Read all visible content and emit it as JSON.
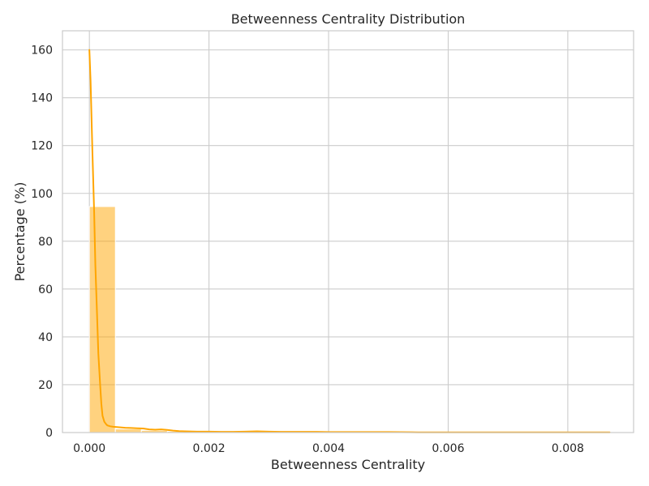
{
  "chart_data": {
    "type": "bar",
    "title": "Betweenness Centrality Distribution",
    "xlabel": "Betweenness Centrality",
    "ylabel": "Percentage (%)",
    "xlim": [
      -0.00045,
      0.0091
    ],
    "ylim": [
      0,
      168
    ],
    "xticks": [
      0.0,
      0.002,
      0.004,
      0.006,
      0.008
    ],
    "xtick_labels": [
      "0.000",
      "0.002",
      "0.004",
      "0.006",
      "0.008"
    ],
    "yticks": [
      0,
      20,
      40,
      60,
      80,
      100,
      120,
      140,
      160
    ],
    "ytick_labels": [
      "0",
      "20",
      "40",
      "60",
      "80",
      "100",
      "120",
      "140",
      "160"
    ],
    "grid": true,
    "bar_color": "#ffa500",
    "bar_alpha": 0.5,
    "kde_color": "#ffa500",
    "bins": [
      {
        "x0": 0.0,
        "x1": 0.000435,
        "value": 94.5
      },
      {
        "x0": 0.000435,
        "x1": 0.00087,
        "value": 1.5
      },
      {
        "x0": 0.00087,
        "x1": 0.001305,
        "value": 0.9
      },
      {
        "x0": 0.001305,
        "x1": 0.00174,
        "value": 0.5
      },
      {
        "x0": 0.00174,
        "x1": 0.002175,
        "value": 0.3
      },
      {
        "x0": 0.002175,
        "x1": 0.00261,
        "value": 0.3
      },
      {
        "x0": 0.00261,
        "x1": 0.003045,
        "value": 0.3
      },
      {
        "x0": 0.003045,
        "x1": 0.00348,
        "value": 0.2
      },
      {
        "x0": 0.00348,
        "x1": 0.003915,
        "value": 0.2
      },
      {
        "x0": 0.003915,
        "x1": 0.00435,
        "value": 0.2
      },
      {
        "x0": 0.00435,
        "x1": 0.004785,
        "value": 0.2
      },
      {
        "x0": 0.004785,
        "x1": 0.00522,
        "value": 0.1
      },
      {
        "x0": 0.00522,
        "x1": 0.005655,
        "value": 0.0
      },
      {
        "x0": 0.005655,
        "x1": 0.00609,
        "value": 0.1
      },
      {
        "x0": 0.00609,
        "x1": 0.006525,
        "value": 0.1
      },
      {
        "x0": 0.006525,
        "x1": 0.00696,
        "value": 0.0
      },
      {
        "x0": 0.00696,
        "x1": 0.007395,
        "value": 0.1
      },
      {
        "x0": 0.007395,
        "x1": 0.00783,
        "value": 0.0
      },
      {
        "x0": 0.00783,
        "x1": 0.008265,
        "value": 0.0
      },
      {
        "x0": 0.008265,
        "x1": 0.0087,
        "value": 0.1
      }
    ],
    "kde": {
      "x": [
        0.0,
        2e-05,
        5e-05,
        8e-05,
        0.0001,
        0.00013,
        0.00015,
        0.00018,
        0.0002,
        0.00022,
        0.00025,
        0.00028,
        0.0003,
        0.00035,
        0.0004,
        0.0005,
        0.0006,
        0.0007,
        0.0008,
        0.0009,
        0.001,
        0.0011,
        0.0012,
        0.0013,
        0.0014,
        0.0015,
        0.0016,
        0.0018,
        0.002,
        0.0022,
        0.0024,
        0.0026,
        0.0028,
        0.003,
        0.0032,
        0.0034,
        0.0036,
        0.0038,
        0.004,
        0.0045,
        0.005,
        0.0055,
        0.006,
        0.0065,
        0.007,
        0.0075,
        0.008,
        0.0085,
        0.0087
      ],
      "y": [
        160,
        147,
        118,
        92,
        70,
        48,
        33,
        20,
        12,
        7,
        4.5,
        3.5,
        3,
        2.6,
        2.4,
        2.2,
        2.0,
        1.9,
        1.8,
        1.7,
        1.3,
        1.2,
        1.3,
        1.1,
        0.8,
        0.6,
        0.5,
        0.4,
        0.4,
        0.3,
        0.3,
        0.4,
        0.5,
        0.4,
        0.3,
        0.3,
        0.3,
        0.3,
        0.2,
        0.2,
        0.2,
        0.1,
        0.1,
        0.1,
        0.1,
        0.1,
        0.1,
        0.1,
        0.1
      ]
    }
  }
}
